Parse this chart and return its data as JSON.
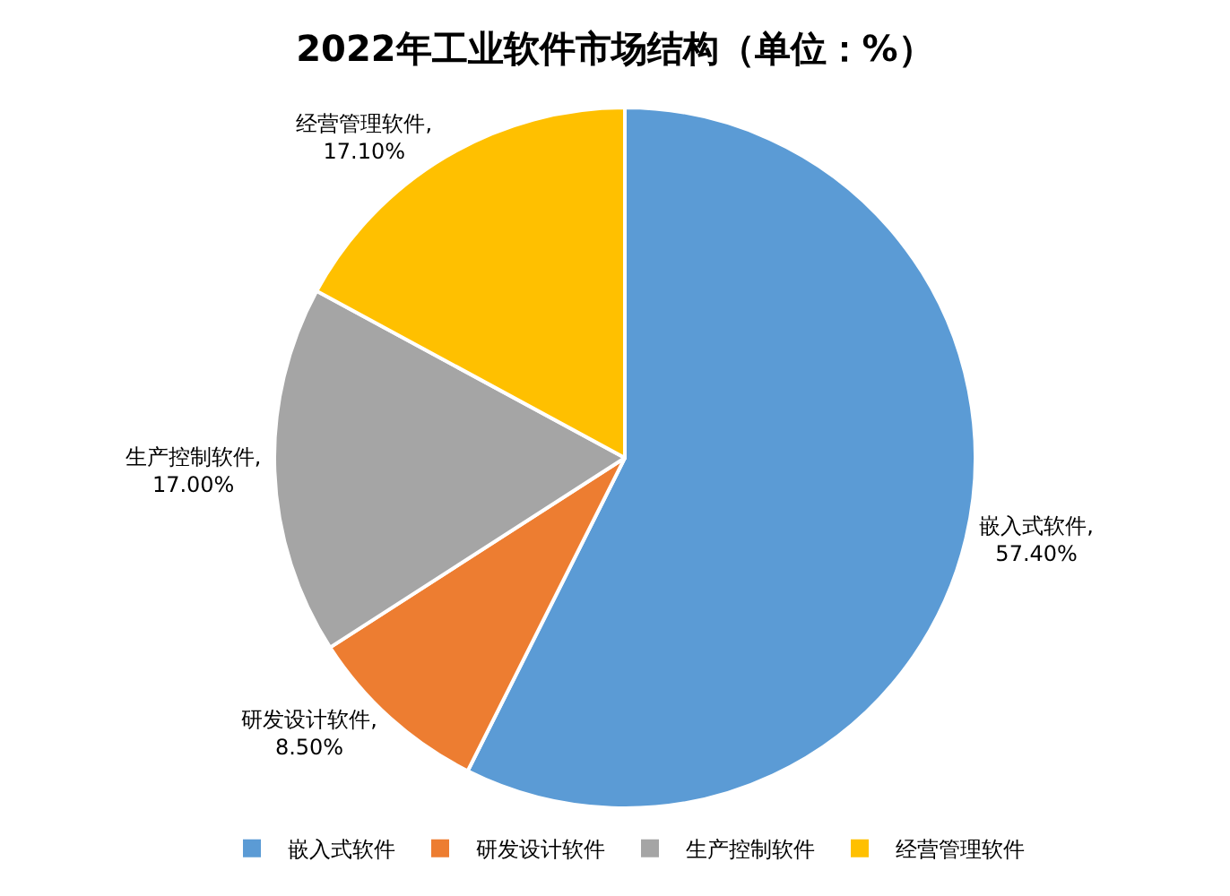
{
  "chart_data": {
    "type": "pie",
    "title": "2022年工业软件市场结构（单位：%）",
    "categories": [
      "嵌入式软件",
      "研发设计软件",
      "生产控制软件",
      "经营管理软件"
    ],
    "values": [
      57.4,
      8.5,
      17.0,
      17.1
    ],
    "colors": [
      "#5b9bd5",
      "#ed7d31",
      "#a5a5a5",
      "#ffc000"
    ],
    "value_labels": [
      "嵌入式软件,\n57.40%",
      "研发设计软件,\n8.50%",
      "生产控制软件,\n17.00%",
      "经营管理软件,\n17.10%"
    ],
    "legend": "bottom"
  }
}
